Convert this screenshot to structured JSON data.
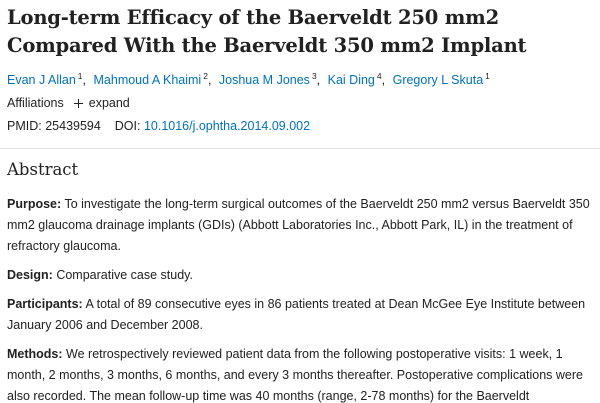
{
  "article": {
    "title_lines": [
      "Long-term Efficacy of the Baerveldt 250 mm2",
      "Compared With the Baerveldt 350 mm2 Implant"
    ],
    "authors": [
      {
        "name": "Evan J Allan",
        "affiliation": "1"
      },
      {
        "name": "Mahmoud A Khaimi",
        "affiliation": "2"
      },
      {
        "name": "Joshua M Jones",
        "affiliation": "3"
      },
      {
        "name": "Kai Ding",
        "affiliation": "4"
      },
      {
        "name": "Gregory L Skuta",
        "affiliation": "1"
      }
    ],
    "affiliations_label": "Affiliations",
    "expand_label": "expand",
    "pmid_label": "PMID:",
    "pmid": "25439594",
    "doi_label": "DOI:",
    "doi": "10.1016/j.ophtha.2014.09.002"
  },
  "abstract": {
    "heading": "Abstract",
    "sections": [
      {
        "label": "Purpose:",
        "text": "To investigate the long-term surgical outcomes of the Baerveldt 250 mm2 versus Baerveldt 350 mm2 glaucoma drainage implants (GDIs) (Abbott Laboratories Inc., Abbott Park, IL) in the treatment of refractory glaucoma."
      },
      {
        "label": "Design:",
        "text": "Comparative case study."
      },
      {
        "label": "Participants:",
        "text": "A total of 89 consecutive eyes in 86 patients treated at Dean McGee Eye Institute between January 2006 and December 2008."
      },
      {
        "label": "Methods:",
        "text": "We retrospectively reviewed patient data from the following postoperative visits: 1 week, 1 month, 2 months, 3 months, 6 months, and every 3 months thereafter. Postoperative complications were also recorded. The mean follow-up time was 40 months (range, 2-78 months) for the Baerveldt"
      }
    ]
  }
}
